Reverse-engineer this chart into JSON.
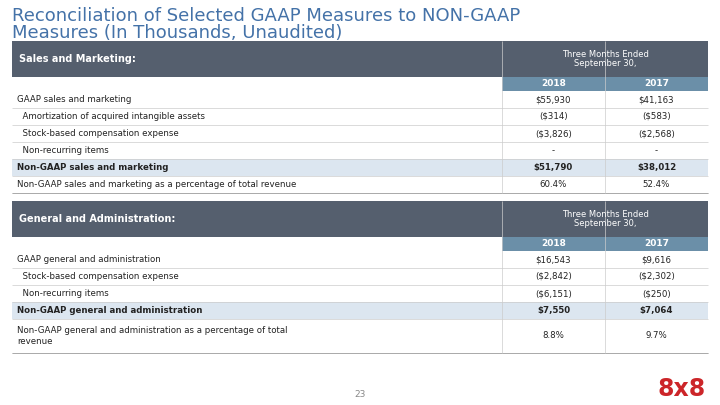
{
  "title_line1": "Reconciliation of Selected GAAP Measures to NON-GAAP",
  "title_line2": "Measures (In Thousands, Unaudited)",
  "title_fontsize": 13,
  "title_color": "#4472a8",
  "background_color": "#ffffff",
  "header_dark": "#555f6e",
  "header_light": "#6b8fa8",
  "highlight_row": "#dce6f0",
  "text_dark": "#222222",
  "text_white": "#ffffff",
  "table1_header_label": "Sales and Marketing:",
  "table1_cols": [
    "2018",
    "2017"
  ],
  "table1_rows": [
    [
      "GAAP sales and marketing",
      "$55,930",
      "$41,163",
      false
    ],
    [
      "  Amortization of acquired intangible assets",
      "($314)",
      "($583)",
      false
    ],
    [
      "  Stock-based compensation expense",
      "($3,826)",
      "($2,568)",
      false
    ],
    [
      "  Non-recurring items",
      "-",
      "-",
      false
    ],
    [
      "Non-GAAP sales and marketing",
      "$51,790",
      "$38,012",
      true
    ],
    [
      "Non-GAAP sales and marketing as a percentage of total revenue",
      "60.4%",
      "52.4%",
      false
    ]
  ],
  "table2_header_label": "General and Administration:",
  "table2_cols": [
    "2018",
    "2017"
  ],
  "table2_rows": [
    [
      "GAAP general and administration",
      "$16,543",
      "$9,616",
      false
    ],
    [
      "  Stock-based compensation expense",
      "($2,842)",
      "($2,302)",
      false
    ],
    [
      "  Non-recurring items",
      "($6,151)",
      "($250)",
      false
    ],
    [
      "Non-GAAP general and administration",
      "$7,550",
      "$7,064",
      true
    ],
    [
      "Non-GAAP general and administration as a percentage of total\nrevenue",
      "8.8%",
      "9.7%",
      false
    ]
  ],
  "page_number": "23",
  "logo_text": "8x8",
  "logo_color": "#cc2529"
}
